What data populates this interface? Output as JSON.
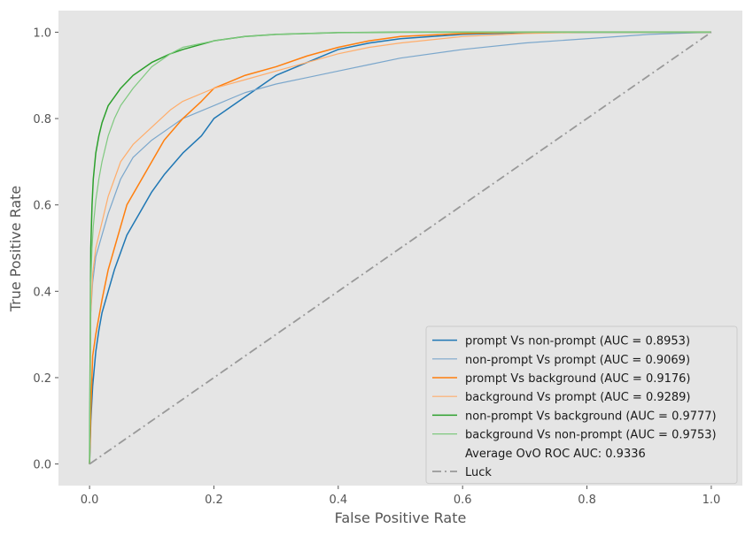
{
  "chart_data": {
    "type": "line",
    "xlabel": "False Positive Rate",
    "ylabel": "True Positive Rate",
    "xlim": [
      -0.05,
      1.05
    ],
    "ylim": [
      -0.05,
      1.05
    ],
    "xticks": [
      "0.0",
      "0.2",
      "0.4",
      "0.6",
      "0.8",
      "1.0"
    ],
    "yticks": [
      "0.0",
      "0.2",
      "0.4",
      "0.6",
      "0.8",
      "1.0"
    ],
    "grid": false,
    "legend_position": "lower-right",
    "background_color": "#e5e5e5",
    "series": [
      {
        "name": "prompt Vs non-prompt (AUC = 0.8953)",
        "color": "#1f77b4",
        "width": 1.5,
        "points": [
          [
            0,
            0
          ],
          [
            0.002,
            0.1
          ],
          [
            0.005,
            0.18
          ],
          [
            0.01,
            0.26
          ],
          [
            0.015,
            0.31
          ],
          [
            0.02,
            0.35
          ],
          [
            0.03,
            0.4
          ],
          [
            0.04,
            0.45
          ],
          [
            0.05,
            0.49
          ],
          [
            0.06,
            0.53
          ],
          [
            0.08,
            0.58
          ],
          [
            0.1,
            0.63
          ],
          [
            0.12,
            0.67
          ],
          [
            0.15,
            0.72
          ],
          [
            0.18,
            0.76
          ],
          [
            0.2,
            0.8
          ],
          [
            0.22,
            0.82
          ],
          [
            0.25,
            0.85
          ],
          [
            0.28,
            0.88
          ],
          [
            0.3,
            0.9
          ],
          [
            0.35,
            0.93
          ],
          [
            0.4,
            0.96
          ],
          [
            0.45,
            0.975
          ],
          [
            0.5,
            0.985
          ],
          [
            0.6,
            0.995
          ],
          [
            0.7,
            0.999
          ],
          [
            0.8,
            1.0
          ],
          [
            1.0,
            1.0
          ]
        ]
      },
      {
        "name": "non-prompt Vs prompt (AUC = 0.9069)",
        "color": "#7ba7cc",
        "width": 1.2,
        "points": [
          [
            0,
            0
          ],
          [
            0.002,
            0.35
          ],
          [
            0.005,
            0.42
          ],
          [
            0.01,
            0.48
          ],
          [
            0.02,
            0.53
          ],
          [
            0.03,
            0.58
          ],
          [
            0.05,
            0.66
          ],
          [
            0.07,
            0.71
          ],
          [
            0.1,
            0.75
          ],
          [
            0.13,
            0.78
          ],
          [
            0.15,
            0.8
          ],
          [
            0.2,
            0.83
          ],
          [
            0.25,
            0.86
          ],
          [
            0.3,
            0.88
          ],
          [
            0.35,
            0.895
          ],
          [
            0.4,
            0.91
          ],
          [
            0.45,
            0.925
          ],
          [
            0.5,
            0.94
          ],
          [
            0.6,
            0.96
          ],
          [
            0.7,
            0.975
          ],
          [
            0.8,
            0.985
          ],
          [
            0.9,
            0.995
          ],
          [
            1.0,
            1.0
          ]
        ]
      },
      {
        "name": "prompt Vs background (AUC = 0.9176)",
        "color": "#ff7f0e",
        "width": 1.5,
        "points": [
          [
            0,
            0
          ],
          [
            0.002,
            0.12
          ],
          [
            0.005,
            0.25
          ],
          [
            0.01,
            0.3
          ],
          [
            0.02,
            0.38
          ],
          [
            0.03,
            0.45
          ],
          [
            0.04,
            0.5
          ],
          [
            0.05,
            0.55
          ],
          [
            0.06,
            0.6
          ],
          [
            0.08,
            0.65
          ],
          [
            0.1,
            0.7
          ],
          [
            0.12,
            0.75
          ],
          [
            0.15,
            0.8
          ],
          [
            0.18,
            0.84
          ],
          [
            0.2,
            0.87
          ],
          [
            0.25,
            0.9
          ],
          [
            0.3,
            0.92
          ],
          [
            0.35,
            0.945
          ],
          [
            0.4,
            0.965
          ],
          [
            0.45,
            0.98
          ],
          [
            0.5,
            0.99
          ],
          [
            0.6,
            0.997
          ],
          [
            0.7,
            1.0
          ],
          [
            1.0,
            1.0
          ]
        ]
      },
      {
        "name": "background Vs prompt (AUC = 0.9289)",
        "color": "#ffad6b",
        "width": 1.2,
        "points": [
          [
            0,
            0
          ],
          [
            0.002,
            0.35
          ],
          [
            0.005,
            0.44
          ],
          [
            0.01,
            0.5
          ],
          [
            0.02,
            0.56
          ],
          [
            0.03,
            0.62
          ],
          [
            0.05,
            0.7
          ],
          [
            0.07,
            0.74
          ],
          [
            0.1,
            0.78
          ],
          [
            0.13,
            0.82
          ],
          [
            0.15,
            0.84
          ],
          [
            0.2,
            0.87
          ],
          [
            0.25,
            0.89
          ],
          [
            0.3,
            0.91
          ],
          [
            0.35,
            0.93
          ],
          [
            0.4,
            0.95
          ],
          [
            0.45,
            0.965
          ],
          [
            0.5,
            0.975
          ],
          [
            0.6,
            0.99
          ],
          [
            0.7,
            0.997
          ],
          [
            0.8,
            1.0
          ],
          [
            1.0,
            1.0
          ]
        ]
      },
      {
        "name": "non-prompt Vs background (AUC = 0.9777)",
        "color": "#2ca02c",
        "width": 1.5,
        "points": [
          [
            0,
            0
          ],
          [
            0.002,
            0.5
          ],
          [
            0.004,
            0.6
          ],
          [
            0.006,
            0.66
          ],
          [
            0.01,
            0.72
          ],
          [
            0.015,
            0.76
          ],
          [
            0.02,
            0.79
          ],
          [
            0.03,
            0.83
          ],
          [
            0.04,
            0.85
          ],
          [
            0.05,
            0.87
          ],
          [
            0.07,
            0.9
          ],
          [
            0.1,
            0.93
          ],
          [
            0.13,
            0.95
          ],
          [
            0.15,
            0.96
          ],
          [
            0.2,
            0.98
          ],
          [
            0.25,
            0.99
          ],
          [
            0.3,
            0.995
          ],
          [
            0.4,
            0.999
          ],
          [
            0.5,
            1.0
          ],
          [
            1.0,
            1.0
          ]
        ]
      },
      {
        "name": "background Vs non-prompt (AUC = 0.9753)",
        "color": "#7fc97f",
        "width": 1.2,
        "points": [
          [
            0,
            0
          ],
          [
            0.002,
            0.42
          ],
          [
            0.004,
            0.5
          ],
          [
            0.006,
            0.55
          ],
          [
            0.01,
            0.61
          ],
          [
            0.015,
            0.66
          ],
          [
            0.02,
            0.7
          ],
          [
            0.03,
            0.76
          ],
          [
            0.04,
            0.8
          ],
          [
            0.05,
            0.83
          ],
          [
            0.07,
            0.87
          ],
          [
            0.1,
            0.92
          ],
          [
            0.13,
            0.95
          ],
          [
            0.15,
            0.965
          ],
          [
            0.2,
            0.98
          ],
          [
            0.25,
            0.99
          ],
          [
            0.3,
            0.995
          ],
          [
            0.4,
            0.999
          ],
          [
            0.5,
            1.0
          ],
          [
            1.0,
            1.0
          ]
        ]
      },
      {
        "name": "Luck",
        "color": "#999999",
        "width": 1.8,
        "dash": "10,4,2,4",
        "points": [
          [
            0,
            0
          ],
          [
            1,
            1
          ]
        ]
      }
    ],
    "legend": [
      {
        "label": "prompt Vs non-prompt (AUC = 0.8953)",
        "color": "#1f77b4",
        "width": 1.5
      },
      {
        "label": "non-prompt Vs prompt (AUC = 0.9069)",
        "color": "#7ba7cc",
        "width": 1.2
      },
      {
        "label": "prompt Vs background (AUC = 0.9176)",
        "color": "#ff7f0e",
        "width": 1.5
      },
      {
        "label": "background Vs prompt (AUC = 0.9289)",
        "color": "#ffad6b",
        "width": 1.2
      },
      {
        "label": "non-prompt Vs background (AUC = 0.9777)",
        "color": "#2ca02c",
        "width": 1.5
      },
      {
        "label": "background Vs non-prompt (AUC = 0.9753)",
        "color": "#7fc97f",
        "width": 1.2
      },
      {
        "label": "Average OvO ROC AUC: 0.9336",
        "color": null
      },
      {
        "label": "Luck",
        "color": "#999999",
        "width": 1.8,
        "dash": "10,4,2,4"
      }
    ]
  }
}
